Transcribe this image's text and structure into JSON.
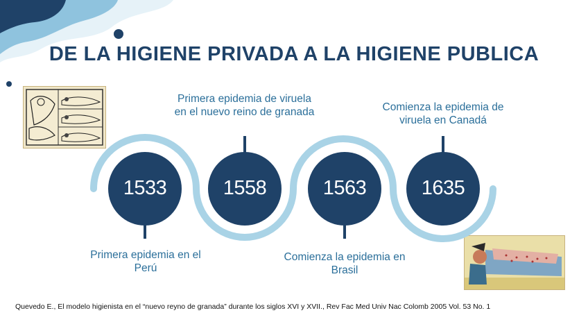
{
  "title": "DE LA HIGIENE PRIVADA A LA HIGIENE PUBLICA",
  "colors": {
    "navy": "#1f4268",
    "track": "#a9d3e6",
    "text_blue": "#2b6f9a",
    "deco_light": "#cfe5f1",
    "deco_mid": "#8fc3de"
  },
  "timeline": [
    {
      "year": "1533",
      "event": "Primera epidemia en el Perú",
      "label_side": "bottom"
    },
    {
      "year": "1558",
      "event": "Primera epidemia de viruela en el nuevo reino de granada",
      "label_side": "top"
    },
    {
      "year": "1563",
      "event": "Comienza la epidemia en Brasil",
      "label_side": "bottom"
    },
    {
      "year": "1635",
      "event": "Comienza la epidemia de viruela en Canadá",
      "label_side": "top"
    }
  ],
  "citation": "Quevedo E., El modelo higienista en el “nuevo reyno de granada” durante los siglos XVI y XVII., Rev Fac Med Univ Nac Colomb 2005 Vol. 53 No. 1"
}
